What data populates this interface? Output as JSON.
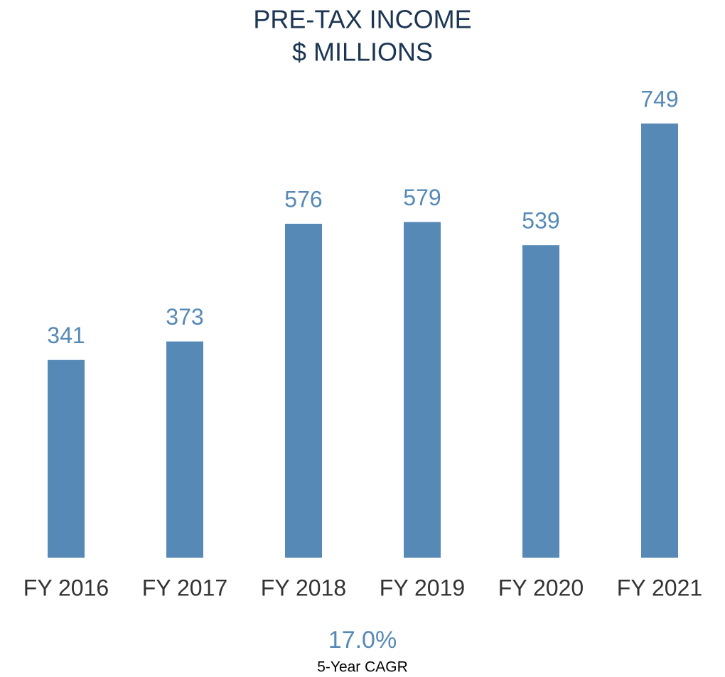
{
  "chart_data": {
    "type": "bar",
    "title": "PRE-TAX INCOME",
    "subtitle": "$ MILLIONS",
    "categories": [
      "FY 2016",
      "FY 2017",
      "FY 2018",
      "FY 2019",
      "FY 2020",
      "FY 2021"
    ],
    "values": [
      341,
      373,
      576,
      579,
      539,
      749
    ],
    "color": "#5689b6",
    "annotations": [
      "17.0%",
      "5-Year CAGR"
    ]
  }
}
